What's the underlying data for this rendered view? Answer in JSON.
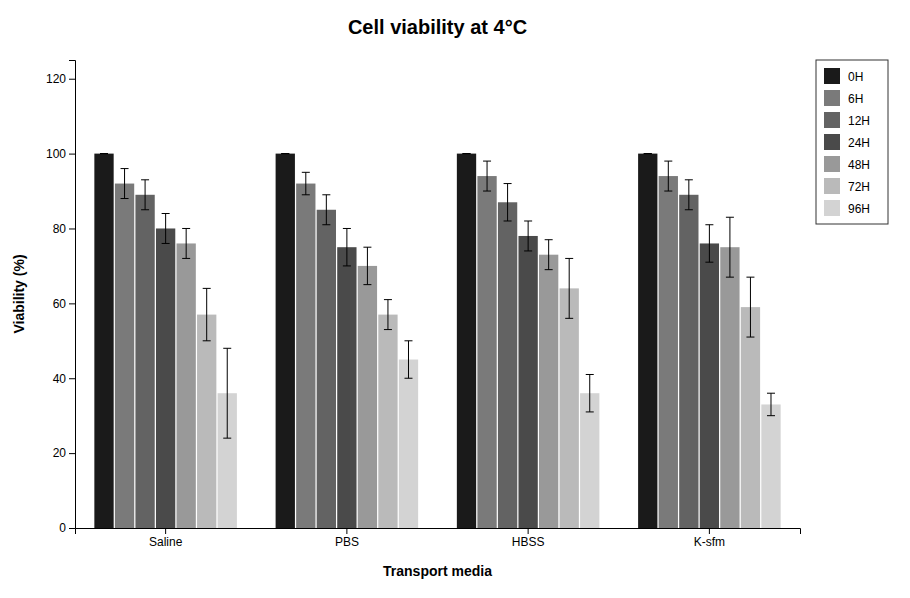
{
  "chart_data": {
    "type": "bar",
    "title": "Cell viability at 4°C",
    "x_label": "Transport media",
    "y_label": "Viability (%)",
    "categories": [
      "Saline",
      "PBS",
      "HBSS",
      "K-sfm"
    ],
    "series": [
      {
        "name": "0H",
        "color": "#1a1a1a",
        "values": [
          100,
          100,
          100,
          100
        ],
        "errors": [
          0,
          0,
          0,
          0
        ]
      },
      {
        "name": "6H",
        "color": "#7a7a7a",
        "values": [
          92,
          92,
          94,
          94
        ],
        "errors": [
          4,
          3,
          4,
          4
        ]
      },
      {
        "name": "12H",
        "color": "#636363",
        "values": [
          89,
          85,
          87,
          89
        ],
        "errors": [
          4,
          4,
          5,
          4
        ]
      },
      {
        "name": "24H",
        "color": "#4a4a4a",
        "values": [
          80,
          75,
          78,
          76
        ],
        "errors": [
          4,
          5,
          4,
          5
        ]
      },
      {
        "name": "48H",
        "color": "#999999",
        "values": [
          76,
          70,
          73,
          75
        ],
        "errors": [
          4,
          5,
          4,
          8
        ]
      },
      {
        "name": "72H",
        "color": "#bababa",
        "values": [
          57,
          57,
          64,
          59
        ],
        "errors": [
          7,
          4,
          8,
          8
        ]
      },
      {
        "name": "96H",
        "color": "#d3d3d3",
        "values": [
          36,
          45,
          36,
          33
        ],
        "errors": [
          12,
          5,
          5,
          3
        ]
      }
    ],
    "ylim": [
      0,
      125
    ],
    "yticks": [
      0,
      20,
      40,
      60,
      80,
      100,
      120
    ],
    "grid": false,
    "legend": "right"
  }
}
